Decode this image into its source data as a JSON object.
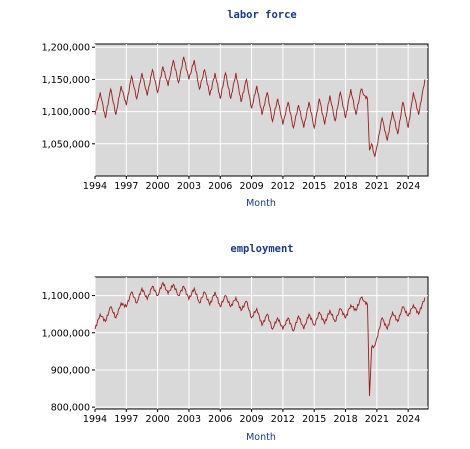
{
  "colors": {
    "plot_bg": "#d9d9d9",
    "line": "#9b1c1c",
    "grid": "#ffffff",
    "title": "#1a3a8a"
  },
  "chart_data": [
    {
      "type": "line",
      "title": "labor force",
      "xlabel": "Month",
      "ylabel": "",
      "xlim": [
        1994,
        2025.9
      ],
      "ylim": [
        1000000,
        1205000
      ],
      "xticks": [
        1994,
        1997,
        2000,
        2003,
        2006,
        2009,
        2012,
        2015,
        2018,
        2021,
        2024
      ],
      "xtick_labels": [
        "1994",
        "1997",
        "2000",
        "2003",
        "2006",
        "2009",
        "2012",
        "2015",
        "2018",
        "2021",
        "2024"
      ],
      "yticks": [
        1050000,
        1100000,
        1150000,
        1200000
      ],
      "ytick_labels": [
        "1,050,000",
        "1,100,000",
        "1,150,000",
        "1,200,000"
      ],
      "grid": true,
      "series": [
        {
          "x": [
            1994.0,
            1994.5,
            1995.0,
            1995.5,
            1996.0,
            1996.5,
            1997.0,
            1997.5,
            1998.0,
            1998.5,
            1999.0,
            1999.5,
            2000.0,
            2000.5,
            2001.0,
            2001.5,
            2002.0,
            2002.5,
            2003.0,
            2003.5,
            2004.0,
            2004.5,
            2005.0,
            2005.5,
            2006.0,
            2006.5,
            2007.0,
            2007.5,
            2008.0,
            2008.5,
            2009.0,
            2009.5,
            2010.0,
            2010.5,
            2011.0,
            2011.5,
            2012.0,
            2012.5,
            2013.0,
            2013.5,
            2014.0,
            2014.5,
            2015.0,
            2015.5,
            2016.0,
            2016.5,
            2017.0,
            2017.5,
            2018.0,
            2018.5,
            2019.0,
            2019.5,
            2019.8,
            2020.1,
            2020.3,
            2020.5,
            2020.8,
            2021.0,
            2021.5,
            2022.0,
            2022.5,
            2023.0,
            2023.5,
            2024.0,
            2024.5,
            2025.0,
            2025.6
          ],
          "y": [
            1095000,
            1130000,
            1090000,
            1135000,
            1095000,
            1140000,
            1110000,
            1155000,
            1120000,
            1160000,
            1125000,
            1165000,
            1130000,
            1170000,
            1140000,
            1180000,
            1145000,
            1185000,
            1150000,
            1180000,
            1135000,
            1165000,
            1125000,
            1160000,
            1120000,
            1160000,
            1120000,
            1160000,
            1115000,
            1150000,
            1105000,
            1140000,
            1095000,
            1130000,
            1085000,
            1120000,
            1080000,
            1115000,
            1075000,
            1110000,
            1075000,
            1115000,
            1075000,
            1120000,
            1080000,
            1125000,
            1085000,
            1130000,
            1090000,
            1135000,
            1095000,
            1135000,
            1125000,
            1120000,
            1040000,
            1050000,
            1030000,
            1045000,
            1090000,
            1055000,
            1100000,
            1065000,
            1115000,
            1075000,
            1130000,
            1095000,
            1150000
          ]
        }
      ]
    },
    {
      "type": "line",
      "title": "employment",
      "xlabel": "Month",
      "ylabel": "",
      "xlim": [
        1994,
        2025.9
      ],
      "ylim": [
        795000,
        1150000
      ],
      "xticks": [
        1994,
        1997,
        2000,
        2003,
        2006,
        2009,
        2012,
        2015,
        2018,
        2021,
        2024
      ],
      "xtick_labels": [
        "1994",
        "1997",
        "2000",
        "2003",
        "2006",
        "2009",
        "2012",
        "2015",
        "2018",
        "2021",
        "2024"
      ],
      "yticks": [
        800000,
        900000,
        1000000,
        1100000
      ],
      "ytick_labels": [
        "800,000",
        "900,000",
        "1,000,000",
        "1,100,000"
      ],
      "grid": true,
      "series": [
        {
          "x": [
            1994.0,
            1994.5,
            1995.0,
            1995.5,
            1996.0,
            1996.5,
            1997.0,
            1997.5,
            1998.0,
            1998.5,
            1999.0,
            1999.5,
            2000.0,
            2000.5,
            2001.0,
            2001.5,
            2002.0,
            2002.5,
            2003.0,
            2003.5,
            2004.0,
            2004.5,
            2005.0,
            2005.5,
            2006.0,
            2006.5,
            2007.0,
            2007.5,
            2008.0,
            2008.5,
            2009.0,
            2009.5,
            2010.0,
            2010.5,
            2011.0,
            2011.5,
            2012.0,
            2012.5,
            2013.0,
            2013.5,
            2014.0,
            2014.5,
            2015.0,
            2015.5,
            2016.0,
            2016.5,
            2017.0,
            2017.5,
            2018.0,
            2018.5,
            2019.0,
            2019.5,
            2019.8,
            2020.1,
            2020.3,
            2020.5,
            2020.8,
            2021.0,
            2021.5,
            2022.0,
            2022.5,
            2023.0,
            2023.5,
            2024.0,
            2024.5,
            2025.0,
            2025.6
          ],
          "y": [
            1010000,
            1050000,
            1030000,
            1070000,
            1040000,
            1080000,
            1070000,
            1110000,
            1080000,
            1120000,
            1090000,
            1125000,
            1100000,
            1135000,
            1105000,
            1130000,
            1100000,
            1125000,
            1090000,
            1120000,
            1080000,
            1110000,
            1075000,
            1110000,
            1070000,
            1100000,
            1070000,
            1095000,
            1060000,
            1085000,
            1040000,
            1065000,
            1020000,
            1050000,
            1010000,
            1040000,
            1010000,
            1040000,
            1005000,
            1045000,
            1010000,
            1050000,
            1020000,
            1055000,
            1025000,
            1060000,
            1030000,
            1065000,
            1040000,
            1075000,
            1060000,
            1095000,
            1085000,
            1075000,
            830000,
            960000,
            965000,
            985000,
            1040000,
            1010000,
            1055000,
            1030000,
            1070000,
            1045000,
            1075000,
            1050000,
            1095000
          ]
        }
      ]
    }
  ]
}
